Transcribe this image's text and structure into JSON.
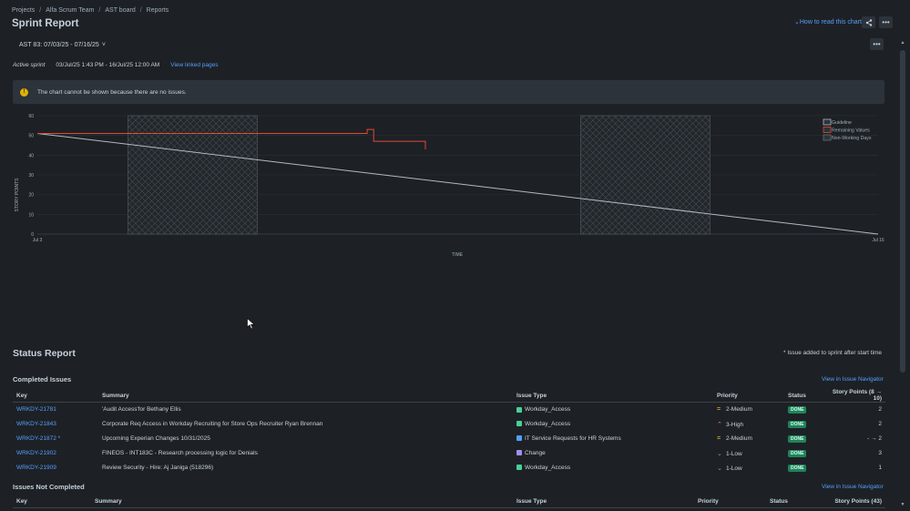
{
  "breadcrumb": [
    "Projects",
    "Alfa Scrum Team",
    "AST board",
    "Reports"
  ],
  "page_title": "Sprint Report",
  "how_to_read": "How to read this chart",
  "sprint_select": "AST 83: 07/03/25 - 07/16/25",
  "sprint_meta": {
    "status": "Active sprint",
    "dates": "03/Jul/25 1:43 PM - 16/Jul/25 12:00 AM",
    "linked_pages": "View linked pages"
  },
  "warning_text": "The chart cannot be shown because there are no issues.",
  "chart_data": {
    "type": "line",
    "ylabel": "STORY POINTS",
    "xlabel": "TIME",
    "ylim": [
      0,
      60
    ],
    "yticks": [
      "0",
      "10",
      "20",
      "30",
      "40",
      "50",
      "60"
    ],
    "xticks": [
      "Jul 3",
      "Jul 16"
    ],
    "legend": [
      "Guideline",
      "Remaining Values",
      "Non-Working Days"
    ],
    "legend_position": "top-right",
    "colors": {
      "guideline": "#b3b9c4",
      "remaining": "#e34935",
      "non_working": "#6b7079"
    },
    "series": [
      {
        "name": "Guideline",
        "x": [
          0,
          13
        ],
        "values": [
          51,
          0
        ]
      },
      {
        "name": "Remaining Values",
        "x": [
          0,
          5,
          5.1,
          5.2,
          6.0
        ],
        "values": [
          51,
          51,
          53,
          47,
          43
        ]
      }
    ],
    "non_working_days": [
      [
        1.4,
        3.4
      ],
      [
        8.4,
        10.4
      ]
    ]
  },
  "status_report": {
    "title": "Status Report",
    "note": "* Issue added to sprint after start time",
    "completed": {
      "title": "Completed Issues",
      "nav_link": "View in Issue Navigator",
      "headers": [
        "Key",
        "Summary",
        "Issue Type",
        "Priority",
        "Status",
        "Story Points (8 → 10)"
      ],
      "rows": [
        {
          "key": "WRKDY-21781",
          "summary": "'Audit Access'for Bethany Ellis",
          "type": "Workday_Access",
          "type_color": "#4bce97",
          "priority": "2-Medium",
          "prio_icon": "=",
          "prio_color": "#f5cd47",
          "status": "DONE",
          "points": "2"
        },
        {
          "key": "WRKDY-21843",
          "summary": "Corporate Req Access in Workday Recruiting for Store Ops Recruiter Ryan Brennan",
          "type": "Workday_Access",
          "type_color": "#4bce97",
          "priority": "3-High",
          "prio_icon": "⌃",
          "prio_color": "#f87168",
          "status": "DONE",
          "points": "2"
        },
        {
          "key": "WRKDY-21872 *",
          "summary": "Upcoming Experian Changes 10/31/2025",
          "type": "IT Service Requests for HR Systems",
          "type_color": "#579dff",
          "priority": "2-Medium",
          "prio_icon": "=",
          "prio_color": "#f5cd47",
          "status": "DONE",
          "points": "- → 2"
        },
        {
          "key": "WRKDY-21902",
          "summary": "FINEOS - INT183C - Research processing logic for Denials",
          "type": "Change",
          "type_color": "#9f8fef",
          "priority": "1-Low",
          "prio_icon": "⌄",
          "prio_color": "#579dff",
          "status": "DONE",
          "points": "3"
        },
        {
          "key": "WRKDY-21909",
          "summary": "Review Security - Hire: Aj Janiga (518296)",
          "type": "Workday_Access",
          "type_color": "#4bce97",
          "priority": "1-Low",
          "prio_icon": "⌄",
          "prio_color": "#579dff",
          "status": "DONE",
          "points": "1"
        }
      ]
    },
    "not_completed": {
      "title": "Issues Not Completed",
      "nav_link": "View in Issue Navigator",
      "headers": [
        "Key",
        "Summary",
        "Issue Type",
        "Priority",
        "Status",
        "Story Points (43)"
      ]
    }
  }
}
